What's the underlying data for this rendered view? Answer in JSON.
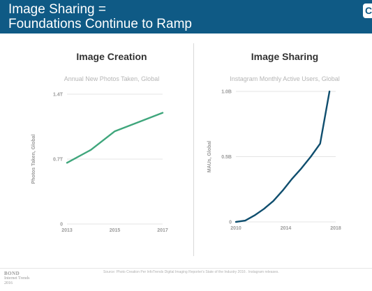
{
  "banner": {
    "title_line1": "Image Sharing =",
    "title_line2": "Foundations Continue to Ramp",
    "background": "#0f5a85",
    "corner_glyph": "C"
  },
  "chart_data": [
    {
      "type": "line",
      "title": "Image Creation",
      "subtitle": "Annual New Photos Taken, Global",
      "ylabel": "Photos Taken, Global",
      "xlabel": "",
      "x": [
        2013,
        2014,
        2015,
        2016,
        2017
      ],
      "series": [
        {
          "values": [
            0.66,
            0.8,
            1.0,
            1.1,
            1.2
          ]
        }
      ],
      "xlim": [
        2013,
        2017
      ],
      "ylim": [
        0,
        1.4
      ],
      "xticks": [
        2013,
        2015,
        2017
      ],
      "xtick_labels": [
        "2013",
        "2015",
        "2017"
      ],
      "yticks": [
        0,
        0.7,
        1.4
      ],
      "ytick_labels": [
        "0",
        "0.7T",
        "1.4T"
      ],
      "grid": true,
      "color": "#3fa67c"
    },
    {
      "type": "line",
      "title": "Image Sharing",
      "subtitle": "Instagram Monthly Active Users, Global",
      "ylabel": "MAUs, Global",
      "xlabel": "",
      "x": [
        2010,
        2010.75,
        2011.5,
        2012.25,
        2013,
        2013.75,
        2014.5,
        2015.25,
        2016,
        2016.75,
        2017.5
      ],
      "series": [
        {
          "values": [
            0,
            0.01,
            0.05,
            0.1,
            0.16,
            0.24,
            0.33,
            0.41,
            0.5,
            0.6,
            1.0
          ]
        }
      ],
      "xlim": [
        2010,
        2018
      ],
      "ylim": [
        0,
        1.0
      ],
      "xticks": [
        2010,
        2014,
        2018
      ],
      "xtick_labels": [
        "2010",
        "2014",
        "2018"
      ],
      "yticks": [
        0,
        0.5,
        1.0
      ],
      "ytick_labels": [
        "0",
        "0.5B",
        "1.0B"
      ],
      "grid": true,
      "color": "#0f4e6e"
    }
  ],
  "footer": {
    "source": "Source: Photo Creation Per InfoTrends Digital Imaging Reporter's State of the Industry 2016 . Instagram releases.",
    "logo_line1": "BOND",
    "logo_line2": "Internet Trends",
    "logo_line3": "2016"
  }
}
